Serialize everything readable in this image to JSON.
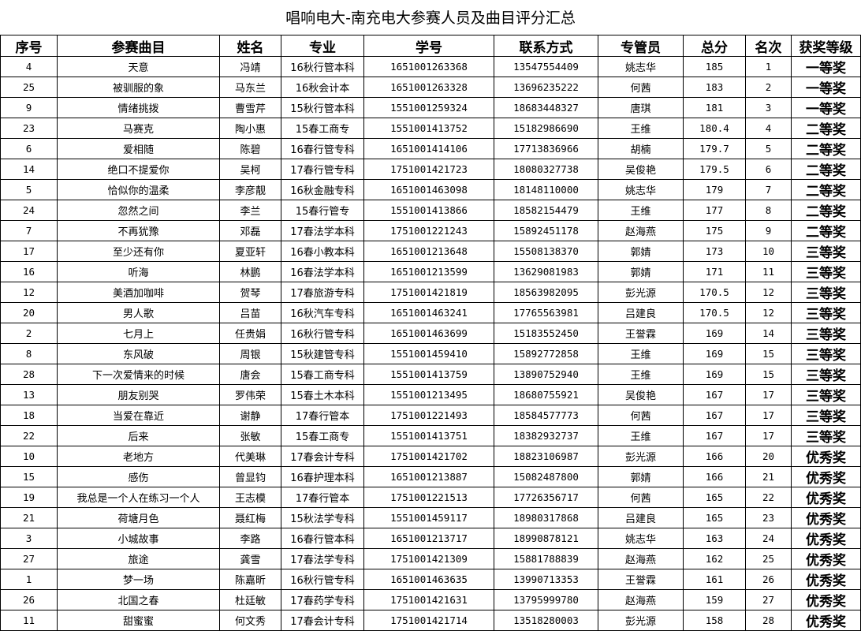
{
  "title": "唱响电大-南充电大参赛人员及曲目评分汇总",
  "columns": [
    "序号",
    "参赛曲目",
    "姓名",
    "专业",
    "学号",
    "联系方式",
    "专管员",
    "总分",
    "名次",
    "获奖等级"
  ],
  "rows": [
    [
      "4",
      "天意",
      "冯靖",
      "16秋行管本科",
      "1651001263368",
      "13547554409",
      "姚志华",
      "185",
      "1",
      "一等奖"
    ],
    [
      "25",
      "被驯服的象",
      "马东兰",
      "16秋会计本",
      "1651001263328",
      "13696235222",
      "何茜",
      "183",
      "2",
      "一等奖"
    ],
    [
      "9",
      "情绪挑拨",
      "曹雪芹",
      "15秋行管本科",
      "1551001259324",
      "18683448327",
      "唐琪",
      "181",
      "3",
      "一等奖"
    ],
    [
      "23",
      "马赛克",
      "陶小惠",
      "15春工商专",
      "1551001413752",
      "15182986690",
      "王维",
      "180.4",
      "4",
      "二等奖"
    ],
    [
      "6",
      "爱相随",
      "陈碧",
      "16春行管专科",
      "1651001414106",
      "17713836966",
      "胡楠",
      "179.7",
      "5",
      "二等奖"
    ],
    [
      "14",
      "绝口不提爱你",
      "吴柯",
      "17春行管专科",
      "1751001421723",
      "18080327738",
      "吴俊艳",
      "179.5",
      "6",
      "二等奖"
    ],
    [
      "5",
      "恰似你的温柔",
      "李彦靓",
      "16秋金融专科",
      "1651001463098",
      "18148110000",
      "姚志华",
      "179",
      "7",
      "二等奖"
    ],
    [
      "24",
      "忽然之间",
      "李兰",
      "15春行管专",
      "1551001413866",
      "18582154479",
      "王维",
      "177",
      "8",
      "二等奖"
    ],
    [
      "7",
      "不再犹豫",
      "邓磊",
      "17春法学本科",
      "1751001221243",
      "15892451178",
      "赵海燕",
      "175",
      "9",
      "二等奖"
    ],
    [
      "17",
      "至少还有你",
      "夏亚轩",
      "16春小教本科",
      "1651001213648",
      "15508138370",
      "郭婧",
      "173",
      "10",
      "三等奖"
    ],
    [
      "16",
      "听海",
      "林鹏",
      "16春法学本科",
      "1651001213599",
      "13629081983",
      "郭婧",
      "171",
      "11",
      "三等奖"
    ],
    [
      "12",
      "美酒加咖啡",
      "贺琴",
      "17春旅游专科",
      "1751001421819",
      "18563982095",
      "彭光源",
      "170.5",
      "12",
      "三等奖"
    ],
    [
      "20",
      "男人歌",
      "吕苗",
      "16秋汽车专科",
      "1651001463241",
      "17765563981",
      "吕建良",
      "170.5",
      "12",
      "三等奖"
    ],
    [
      "2",
      "七月上",
      "任贵娟",
      "16秋行管专科",
      "1651001463699",
      "15183552450",
      "王誉霖",
      "169",
      "14",
      "三等奖"
    ],
    [
      "8",
      "东风破",
      "周银",
      "15秋建管专科",
      "1551001459410",
      "15892772858",
      "王维",
      "169",
      "15",
      "三等奖"
    ],
    [
      "28",
      "下一次爱情来的时候",
      "唐会",
      "15春工商专科",
      "1551001413759",
      "13890752940",
      "王维",
      "169",
      "15",
      "三等奖"
    ],
    [
      "13",
      "朋友别哭",
      "罗伟荣",
      "15春土木本科",
      "1551001213495",
      "18680755921",
      "吴俊艳",
      "167",
      "17",
      "三等奖"
    ],
    [
      "18",
      "当爱在靠近",
      "谢静",
      "17春行管本",
      "1751001221493",
      "18584577773",
      "何茜",
      "167",
      "17",
      "三等奖"
    ],
    [
      "22",
      "后来",
      "张敏",
      "15春工商专",
      "1551001413751",
      "18382932737",
      "王维",
      "167",
      "17",
      "三等奖"
    ],
    [
      "10",
      "老地方",
      "代美琳",
      "17春会计专科",
      "1751001421702",
      "18823106987",
      "彭光源",
      "166",
      "20",
      "优秀奖"
    ],
    [
      "15",
      "感伤",
      "曾显钧",
      "16春护理本科",
      "1651001213887",
      "15082487800",
      "郭婧",
      "166",
      "21",
      "优秀奖"
    ],
    [
      "19",
      "我总是一个人在练习一个人",
      "王志模",
      "17春行管本",
      "1751001221513",
      "17726356717",
      "何茜",
      "165",
      "22",
      "优秀奖"
    ],
    [
      "21",
      "荷塘月色",
      "聂红梅",
      "15秋法学专科",
      "1551001459117",
      "18980317868",
      "吕建良",
      "165",
      "23",
      "优秀奖"
    ],
    [
      "3",
      "小城故事",
      "李路",
      "16春行管本科",
      "1651001213717",
      "18990878121",
      "姚志华",
      "163",
      "24",
      "优秀奖"
    ],
    [
      "27",
      "旅途",
      "龚雪",
      "17春法学专科",
      "1751001421309",
      "15881788839",
      "赵海燕",
      "162",
      "25",
      "优秀奖"
    ],
    [
      "1",
      "梦一场",
      "陈嘉昕",
      "16秋行管专科",
      "1651001463635",
      "13990713353",
      "王誉霖",
      "161",
      "26",
      "优秀奖"
    ],
    [
      "26",
      "北国之春",
      "杜廷敏",
      "17春药学专科",
      "1751001421631",
      "13795999780",
      "赵海燕",
      "159",
      "27",
      "优秀奖"
    ],
    [
      "11",
      "甜蜜蜜",
      "何文秀",
      "17春会计专科",
      "1751001421714",
      "13518280003",
      "彭光源",
      "158",
      "28",
      "优秀奖"
    ]
  ]
}
